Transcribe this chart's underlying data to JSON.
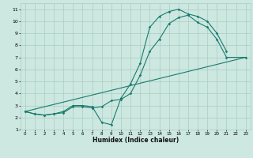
{
  "title": "",
  "xlabel": "Humidex (Indice chaleur)",
  "bg_color": "#cce8e0",
  "grid_color": "#aaccc4",
  "line_color": "#1a7a6e",
  "xlim": [
    -0.5,
    23.5
  ],
  "ylim": [
    1,
    11.5
  ],
  "xticks": [
    0,
    1,
    2,
    3,
    4,
    5,
    6,
    7,
    8,
    9,
    10,
    11,
    12,
    13,
    14,
    15,
    16,
    17,
    18,
    19,
    20,
    21,
    22,
    23
  ],
  "yticks": [
    1,
    2,
    3,
    4,
    5,
    6,
    7,
    8,
    9,
    10,
    11
  ],
  "line1_x": [
    0,
    1,
    2,
    3,
    4,
    5,
    6,
    7,
    8,
    9,
    10,
    11,
    12,
    13,
    14,
    15,
    16,
    17,
    18,
    19,
    20,
    21
  ],
  "line1_y": [
    2.5,
    2.3,
    2.2,
    2.3,
    2.5,
    3.0,
    3.0,
    2.9,
    1.6,
    1.4,
    3.6,
    4.8,
    6.5,
    9.5,
    10.4,
    10.8,
    11.0,
    10.6,
    10.4,
    10.0,
    9.0,
    7.5
  ],
  "line2_x": [
    0,
    1,
    2,
    3,
    4,
    5,
    6,
    7,
    8,
    9,
    10,
    11,
    12,
    13,
    14,
    15,
    16,
    17,
    18,
    19,
    20,
    21,
    23
  ],
  "line2_y": [
    2.5,
    2.3,
    2.2,
    2.3,
    2.4,
    2.9,
    2.9,
    2.8,
    2.9,
    3.4,
    3.5,
    4.0,
    5.5,
    7.5,
    8.5,
    9.8,
    10.3,
    10.5,
    9.9,
    9.5,
    8.5,
    7.0,
    7.0
  ],
  "line3_x": [
    0,
    23
  ],
  "line3_y": [
    2.5,
    7.0
  ]
}
